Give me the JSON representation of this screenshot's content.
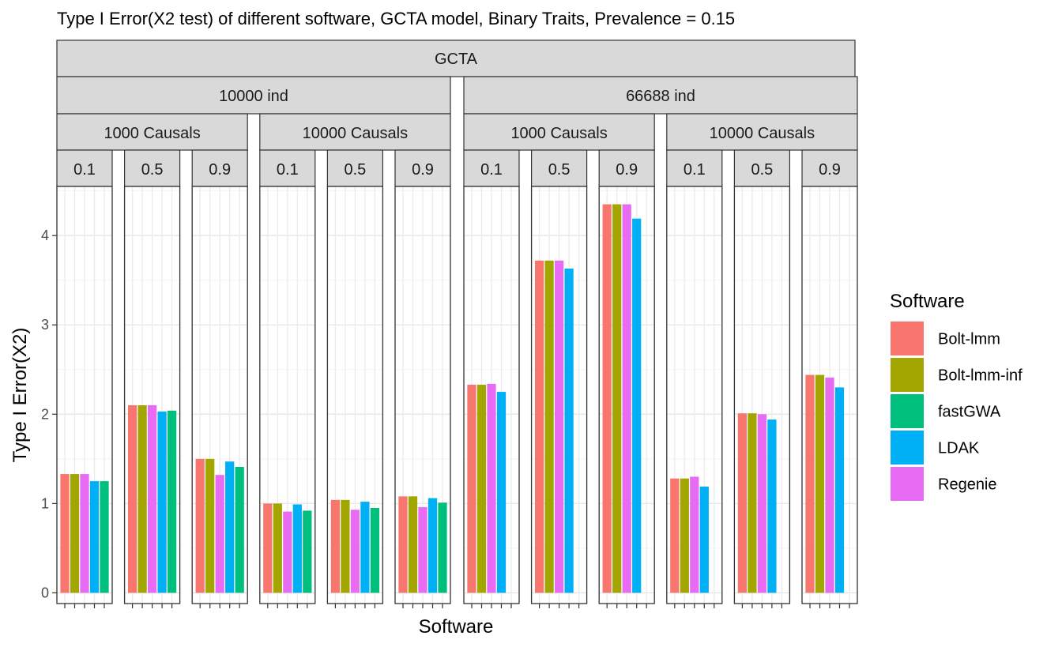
{
  "chart_data": {
    "type": "bar",
    "title": "Type I Error(X2 test) of different software, GCTA model, Binary Traits, Prevalence = 0.15",
    "xlabel": "Software",
    "ylabel": "Type I Error(X2)",
    "ylim": [
      -0.12,
      4.55
    ],
    "yticks": [
      0,
      1,
      2,
      3,
      4
    ],
    "grid": true,
    "legend": {
      "title": "Software",
      "position": "right"
    },
    "facet_top": "GCTA",
    "software": [
      "Bolt-lmm",
      "Bolt-lmm-inf",
      "fastGWA",
      "LDAK",
      "Regenie"
    ],
    "colors": {
      "Bolt-lmm": "#F8766D",
      "Bolt-lmm-inf": "#A3A500",
      "fastGWA": "#00BF7D",
      "LDAK": "#00B0F6",
      "Regenie": "#E76BF3"
    },
    "bar_order": [
      "Bolt-lmm",
      "Bolt-lmm-inf",
      "Regenie",
      "LDAK",
      "fastGWA"
    ],
    "groups": [
      {
        "label": "10000 ind",
        "causals": [
          {
            "label": "1000 Causals",
            "panels": [
              {
                "label": "0.1",
                "values": {
                  "Bolt-lmm": 1.33,
                  "Bolt-lmm-inf": 1.33,
                  "Regenie": 1.33,
                  "LDAK": 1.25,
                  "fastGWA": 1.25
                }
              },
              {
                "label": "0.5",
                "values": {
                  "Bolt-lmm": 2.1,
                  "Bolt-lmm-inf": 2.1,
                  "Regenie": 2.1,
                  "LDAK": 2.03,
                  "fastGWA": 2.04
                }
              },
              {
                "label": "0.9",
                "values": {
                  "Bolt-lmm": 1.5,
                  "Bolt-lmm-inf": 1.5,
                  "Regenie": 1.32,
                  "LDAK": 1.47,
                  "fastGWA": 1.41
                }
              }
            ]
          },
          {
            "label": "10000 Causals",
            "panels": [
              {
                "label": "0.1",
                "values": {
                  "Bolt-lmm": 1.0,
                  "Bolt-lmm-inf": 1.0,
                  "Regenie": 0.91,
                  "LDAK": 0.99,
                  "fastGWA": 0.92
                }
              },
              {
                "label": "0.5",
                "values": {
                  "Bolt-lmm": 1.04,
                  "Bolt-lmm-inf": 1.04,
                  "Regenie": 0.93,
                  "LDAK": 1.02,
                  "fastGWA": 0.95
                }
              },
              {
                "label": "0.9",
                "values": {
                  "Bolt-lmm": 1.08,
                  "Bolt-lmm-inf": 1.08,
                  "Regenie": 0.96,
                  "LDAK": 1.06,
                  "fastGWA": 1.01
                }
              }
            ]
          }
        ]
      },
      {
        "label": "66688 ind",
        "causals": [
          {
            "label": "1000 Causals",
            "panels": [
              {
                "label": "0.1",
                "values": {
                  "Bolt-lmm": 2.33,
                  "Bolt-lmm-inf": 2.33,
                  "Regenie": 2.34,
                  "LDAK": 2.25,
                  "fastGWA": null
                }
              },
              {
                "label": "0.5",
                "values": {
                  "Bolt-lmm": 3.72,
                  "Bolt-lmm-inf": 3.72,
                  "Regenie": 3.72,
                  "LDAK": 3.63,
                  "fastGWA": null
                }
              },
              {
                "label": "0.9",
                "values": {
                  "Bolt-lmm": 4.35,
                  "Bolt-lmm-inf": 4.35,
                  "Regenie": 4.35,
                  "LDAK": 4.19,
                  "fastGWA": null
                }
              }
            ]
          },
          {
            "label": "10000 Causals",
            "panels": [
              {
                "label": "0.1",
                "values": {
                  "Bolt-lmm": 1.28,
                  "Bolt-lmm-inf": 1.28,
                  "Regenie": 1.3,
                  "LDAK": 1.19,
                  "fastGWA": null
                }
              },
              {
                "label": "0.5",
                "values": {
                  "Bolt-lmm": 2.01,
                  "Bolt-lmm-inf": 2.01,
                  "Regenie": 2.0,
                  "LDAK": 1.94,
                  "fastGWA": null
                }
              },
              {
                "label": "0.9",
                "values": {
                  "Bolt-lmm": 2.44,
                  "Bolt-lmm-inf": 2.44,
                  "Regenie": 2.41,
                  "LDAK": 2.3,
                  "fastGWA": null
                }
              }
            ]
          }
        ]
      }
    ]
  }
}
